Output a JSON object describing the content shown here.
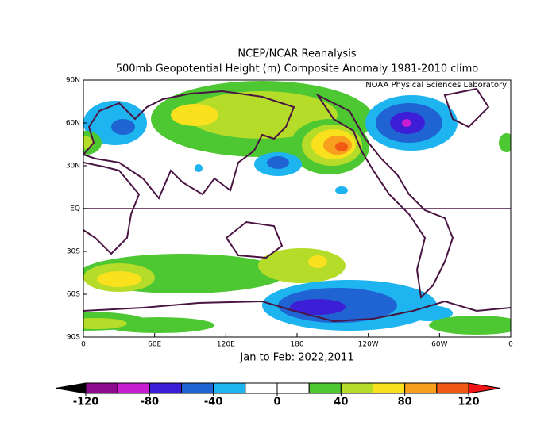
{
  "header": {
    "title": "NCEP/NCAR Reanalysis",
    "subtitle": "500mb Geopotential Height (m) Composite Anomaly 1981-2010 climo",
    "credit": "NOAA Physical Sciences Laboratory"
  },
  "map": {
    "x_labels": [
      "0",
      "60E",
      "120E",
      "180",
      "120W",
      "60W",
      "0"
    ],
    "y_labels": [
      "90N",
      "60N",
      "30N",
      "EQ",
      "30S",
      "60S",
      "90S"
    ],
    "caption": "Jan to Feb: 2022,2011"
  },
  "colorbar": {
    "ticks": [
      -120,
      -80,
      -40,
      0,
      40,
      80,
      120
    ],
    "colors": [
      "#000000",
      "#8c0a8c",
      "#c81ed2",
      "#3c1ed7",
      "#1f64d2",
      "#1eb4f0",
      "#ffffff",
      "#ffffff",
      "#4ec832",
      "#b4dc28",
      "#fae11e",
      "#f8a01e",
      "#f05a14",
      "#f01414"
    ]
  }
}
